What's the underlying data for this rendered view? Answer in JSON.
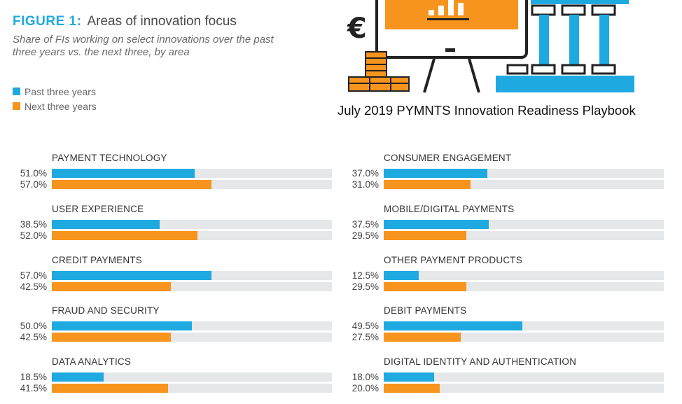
{
  "header": {
    "figure_label": "FIGURE 1:",
    "figure_title": "Areas of innovation focus",
    "subtitle": "Share of FIs working on select innovations over the past three years vs. the next three, by area"
  },
  "caption": "July 2019 PYMNTS Innovation Readiness Playbook",
  "illustration": {
    "currency_symbol": "€"
  },
  "colors": {
    "past": "#1fa9e1",
    "next": "#f7941d",
    "track": "#e6e7e8"
  },
  "chart_data": {
    "type": "bar",
    "orientation": "horizontal",
    "title": "Areas of innovation focus",
    "value_unit": "%",
    "xlim": [
      0,
      100
    ],
    "legend": [
      {
        "name": "Past three years",
        "color": "#1fa9e1"
      },
      {
        "name": "Next three years",
        "color": "#f7941d"
      }
    ],
    "categories": [
      "PAYMENT TECHNOLOGY",
      "USER EXPERIENCE",
      "CREDIT PAYMENTS",
      "FRAUD AND SECURITY",
      "DATA ANALYTICS",
      "CONSUMER ENGAGEMENT",
      "MOBILE/DIGITAL PAYMENTS",
      "OTHER PAYMENT PRODUCTS",
      "DEBIT PAYMENTS",
      "DIGITAL IDENTITY AND AUTHENTICATION"
    ],
    "series": [
      {
        "name": "Past three years",
        "values": [
          51.0,
          38.5,
          57.0,
          50.0,
          18.5,
          37.0,
          37.5,
          12.5,
          49.5,
          18.0
        ],
        "labels": [
          "51.0%",
          "38.5%",
          "57.0%",
          "50.0%",
          "18.5%",
          "37.0%",
          "37.5%",
          "12.5%",
          "49.5%",
          "18.0%"
        ]
      },
      {
        "name": "Next three years",
        "values": [
          57.0,
          52.0,
          42.5,
          42.5,
          41.5,
          31.0,
          29.5,
          29.5,
          27.5,
          20.0
        ],
        "labels": [
          "57.0%",
          "52.0%",
          "42.5%",
          "42.5%",
          "41.5%",
          "31.0%",
          "29.5%",
          "29.5%",
          "27.5%",
          "20.0%"
        ]
      }
    ]
  }
}
